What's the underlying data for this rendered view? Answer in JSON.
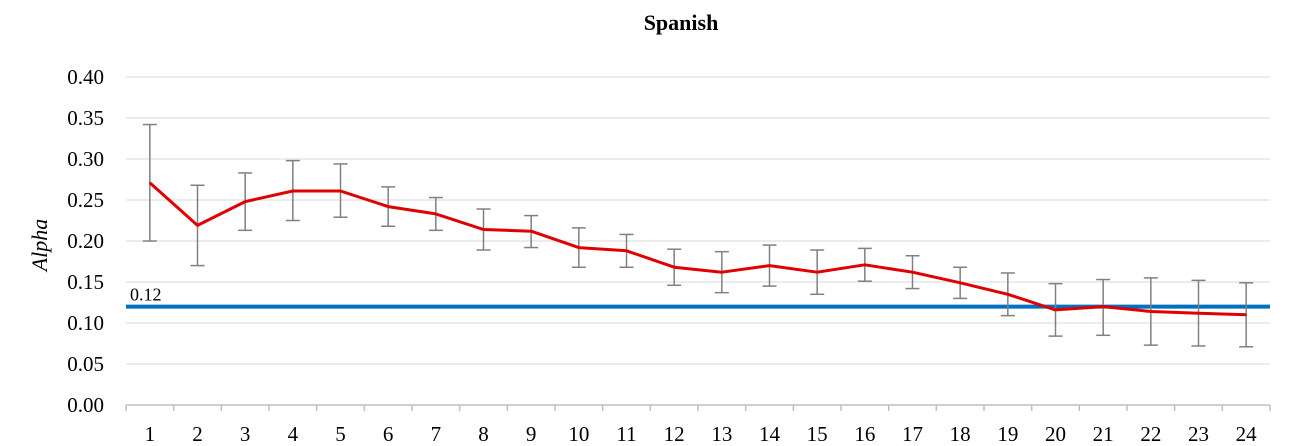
{
  "chart_data": {
    "type": "line",
    "title": "Spanish",
    "xlabel": "",
    "ylabel": "Alpha",
    "categories": [
      "1",
      "2",
      "3",
      "4",
      "5",
      "6",
      "7",
      "8",
      "9",
      "10",
      "11",
      "12",
      "13",
      "14",
      "15",
      "16",
      "17",
      "18",
      "19",
      "20",
      "21",
      "22",
      "23",
      "24"
    ],
    "ylim": [
      0,
      0.4
    ],
    "yticks": [
      "0.00",
      "0.05",
      "0.10",
      "0.15",
      "0.20",
      "0.25",
      "0.30",
      "0.35",
      "0.40"
    ],
    "grid": true,
    "series": [
      {
        "color": "#e00000",
        "values": [
          0.271,
          0.219,
          0.248,
          0.261,
          0.261,
          0.242,
          0.233,
          0.214,
          0.212,
          0.192,
          0.188,
          0.168,
          0.162,
          0.17,
          0.162,
          0.171,
          0.162,
          0.149,
          0.135,
          0.116,
          0.12,
          0.114,
          0.112,
          0.11
        ],
        "error_high": [
          0.342,
          0.268,
          0.283,
          0.298,
          0.294,
          0.266,
          0.253,
          0.239,
          0.231,
          0.216,
          0.208,
          0.19,
          0.187,
          0.195,
          0.189,
          0.191,
          0.182,
          0.168,
          0.161,
          0.148,
          0.153,
          0.155,
          0.152,
          0.149
        ],
        "error_low": [
          0.2,
          0.17,
          0.213,
          0.225,
          0.229,
          0.218,
          0.213,
          0.189,
          0.192,
          0.168,
          0.168,
          0.146,
          0.137,
          0.145,
          0.135,
          0.151,
          0.142,
          0.13,
          0.109,
          0.084,
          0.085,
          0.073,
          0.072,
          0.071
        ],
        "error_color": "#808080"
      }
    ],
    "reference_line": {
      "value": 0.12,
      "label": "0.12",
      "color": "#0070c0"
    }
  }
}
